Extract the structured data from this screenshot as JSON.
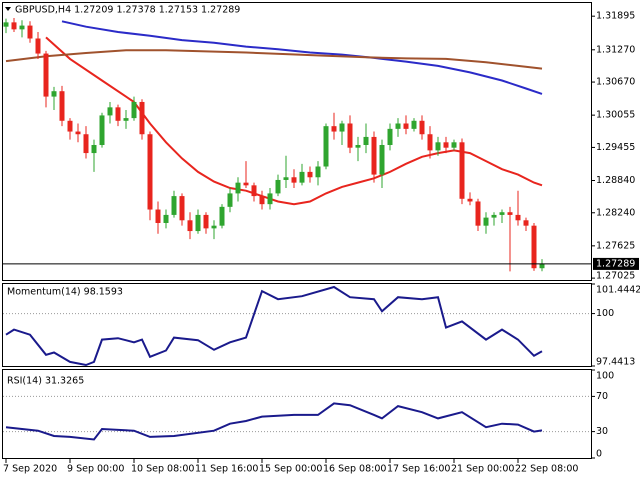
{
  "chart_data": [
    {
      "type": "candlestick",
      "title": "GBPUSD,H4  1.27209 1.27378 1.27153 1.27289",
      "categories": [
        "7 Sep 2020",
        null,
        null,
        null,
        null,
        null,
        null,
        null,
        "9 Sep 00:00",
        null,
        null,
        null,
        null,
        null,
        null,
        null,
        "10 Sep 08:00",
        null,
        null,
        null,
        null,
        null,
        null,
        null,
        "11 Sep 16:00",
        null,
        null,
        null,
        null,
        null,
        null,
        null,
        "15 Sep 00:00",
        null,
        null,
        null,
        null,
        null,
        null,
        null,
        "16 Sep 08:00",
        null,
        null,
        null,
        null,
        null,
        null,
        null,
        "17 Sep 16:00",
        null,
        null,
        null,
        null,
        null,
        null,
        null,
        "21 Sep 00:00",
        null,
        null,
        null,
        null,
        null,
        null,
        null,
        "22 Sep 08:00",
        null,
        null,
        null
      ],
      "open": [
        1.317,
        1.3178,
        1.3165,
        1.3172,
        1.3148,
        1.312,
        1.304,
        1.305,
        1.2995,
        1.2975,
        1.297,
        1.2935,
        1.295,
        1.3005,
        1.302,
        1.2995,
        1.3,
        1.303,
        1.297,
        1.283,
        1.2805,
        1.282,
        1.2855,
        1.281,
        1.279,
        1.282,
        1.2795,
        1.28,
        1.2835,
        1.286,
        1.288,
        1.2875,
        1.2855,
        1.284,
        1.286,
        1.2885,
        1.289,
        1.288,
        1.29,
        1.289,
        1.291,
        1.2985,
        1.2975,
        1.299,
        1.2945,
        1.295,
        1.2965,
        1.2895,
        1.295,
        1.298,
        1.299,
        1.298,
        1.2995,
        1.297,
        1.294,
        1.2955,
        1.2945,
        1.2955,
        1.285,
        1.2845,
        1.28,
        1.2815,
        1.282,
        1.2825,
        1.282,
        1.281,
        1.28,
        1.27209
      ],
      "high": [
        1.3185,
        1.3186,
        1.3182,
        1.318,
        1.316,
        1.3125,
        1.3058,
        1.306,
        1.3,
        1.299,
        1.2985,
        1.296,
        1.301,
        1.303,
        1.3025,
        1.3015,
        1.304,
        1.3035,
        1.2975,
        1.2845,
        1.283,
        1.2865,
        1.286,
        1.2825,
        1.283,
        1.2825,
        1.281,
        1.284,
        1.287,
        1.289,
        1.292,
        1.288,
        1.2865,
        1.287,
        1.2895,
        1.293,
        1.2905,
        1.2915,
        1.291,
        1.292,
        1.299,
        1.301,
        1.2995,
        1.3005,
        1.2965,
        1.299,
        1.2975,
        1.296,
        1.299,
        1.3,
        1.3005,
        1.3,
        1.3005,
        1.2985,
        1.2965,
        1.2965,
        1.296,
        1.2962,
        1.2862,
        1.285,
        1.2825,
        1.2825,
        1.283,
        1.2835,
        1.2865,
        1.2815,
        1.2805,
        1.27378
      ],
      "low": [
        1.3158,
        1.316,
        1.315,
        1.314,
        1.311,
        1.302,
        1.3015,
        1.2985,
        1.296,
        1.2955,
        1.2925,
        1.29,
        1.2945,
        1.299,
        1.2985,
        1.298,
        1.2995,
        1.296,
        1.281,
        1.2785,
        1.2795,
        1.2815,
        1.28,
        1.2775,
        1.2785,
        1.2785,
        1.2775,
        1.2795,
        1.2825,
        1.2845,
        1.287,
        1.2845,
        1.283,
        1.283,
        1.2855,
        1.287,
        1.287,
        1.2875,
        1.288,
        1.2875,
        1.2905,
        1.296,
        1.295,
        1.2935,
        1.292,
        1.2935,
        1.288,
        1.287,
        1.294,
        1.2965,
        1.297,
        1.2975,
        1.296,
        1.2925,
        1.293,
        1.2935,
        1.294,
        1.284,
        1.2838,
        1.279,
        1.2785,
        1.28,
        1.2805,
        1.2715,
        1.28,
        1.279,
        1.2716,
        1.27153
      ],
      "close": [
        1.3178,
        1.3165,
        1.3172,
        1.3148,
        1.312,
        1.304,
        1.305,
        1.2995,
        1.2975,
        1.297,
        1.2935,
        1.295,
        1.3005,
        1.302,
        1.2995,
        1.3,
        1.303,
        1.297,
        1.283,
        1.2805,
        1.282,
        1.2855,
        1.281,
        1.279,
        1.282,
        1.2795,
        1.28,
        1.2835,
        1.286,
        1.288,
        1.2875,
        1.2855,
        1.284,
        1.286,
        1.2885,
        1.289,
        1.288,
        1.29,
        1.289,
        1.291,
        1.2985,
        1.2975,
        1.299,
        1.2945,
        1.295,
        1.2965,
        1.2895,
        1.295,
        1.298,
        1.299,
        1.298,
        1.2995,
        1.297,
        1.294,
        1.2955,
        1.2945,
        1.2955,
        1.285,
        1.2845,
        1.28,
        1.2815,
        1.282,
        1.2825,
        1.282,
        1.281,
        1.28,
        1.27209,
        1.27289
      ],
      "up_color": "#2fa52f",
      "down_color": "#e8251e",
      "series": [
        {
          "color": "#e8251e",
          "x": [
            5,
            8,
            12,
            16,
            18,
            20,
            22,
            24,
            26,
            28,
            30,
            32,
            34,
            36,
            38,
            40,
            42,
            44,
            46,
            48,
            50,
            52,
            54,
            56,
            58,
            60,
            62,
            64,
            66,
            67
          ],
          "values": [
            1.315,
            1.311,
            1.307,
            1.303,
            1.299,
            1.2955,
            1.2925,
            1.29,
            1.2882,
            1.287,
            1.2865,
            1.2855,
            1.2845,
            1.284,
            1.2845,
            1.286,
            1.2872,
            1.288,
            1.2888,
            1.29,
            1.2915,
            1.2928,
            1.2935,
            1.294,
            1.2935,
            1.292,
            1.2905,
            1.2895,
            1.288,
            1.2875
          ]
        },
        {
          "color": "#2b2bc8",
          "x": [
            7,
            10,
            14,
            18,
            22,
            26,
            30,
            34,
            38,
            42,
            46,
            50,
            54,
            58,
            62,
            65,
            67
          ],
          "values": [
            1.318,
            1.317,
            1.316,
            1.3153,
            1.3145,
            1.314,
            1.3133,
            1.3128,
            1.3122,
            1.3118,
            1.3112,
            1.3105,
            1.3097,
            1.3085,
            1.307,
            1.3055,
            1.3045
          ]
        },
        {
          "color": "#a0522d",
          "x": [
            0,
            5,
            10,
            15,
            20,
            25,
            30,
            35,
            40,
            45,
            50,
            55,
            60,
            64,
            67
          ],
          "values": [
            1.3106,
            1.3115,
            1.3121,
            1.3126,
            1.3126,
            1.3124,
            1.3122,
            1.3119,
            1.3116,
            1.3113,
            1.3111,
            1.311,
            1.3104,
            1.3097,
            1.3092
          ]
        }
      ],
      "current_price": 1.27289,
      "ylim": [
        1.2699,
        1.3214
      ],
      "yticks": [
        1.31895,
        {
          "value": 1.3127,
          "label": "1.31270"
        },
        {
          "value": 1.3067,
          "label": "1.30670"
        },
        1.30055,
        1.29455,
        {
          "value": 1.2884,
          "label": "1.28840"
        },
        {
          "value": 1.2824,
          "label": "1.28240"
        },
        1.27625,
        1.27025
      ]
    },
    {
      "type": "line",
      "title": "Momentum(14) 98.1593",
      "color": "#1a1a8c",
      "x": [
        0,
        1,
        3,
        5,
        6,
        8,
        10,
        11,
        12,
        14,
        16,
        17,
        18,
        20,
        21,
        24,
        26,
        28,
        30,
        32,
        34,
        37,
        41,
        43,
        46,
        47,
        49,
        52,
        54,
        55,
        57,
        60,
        62,
        64,
        66,
        67
      ],
      "values": [
        98.97,
        99.22,
        98.97,
        97.99,
        98.1,
        97.64,
        97.49,
        97.64,
        98.73,
        98.8,
        98.6,
        98.73,
        97.89,
        98.2,
        98.83,
        98.7,
        98.23,
        98.6,
        98.83,
        101.1,
        100.7,
        100.85,
        101.3,
        100.8,
        100.7,
        100.11,
        100.8,
        100.7,
        100.8,
        99.32,
        99.62,
        98.73,
        99.22,
        98.73,
        97.94,
        98.1593
      ],
      "ylim": [
        97.4413,
        101.4442
      ],
      "yticks": [
        101.4442,
        100,
        97.4413
      ]
    },
    {
      "type": "line",
      "title": "RSI(14) 31.3265",
      "color": "#1a1a8c",
      "x": [
        0,
        4,
        6,
        8,
        11,
        12,
        16,
        18,
        21,
        26,
        28,
        30,
        32,
        36,
        39,
        41,
        43,
        46,
        47,
        49,
        52,
        54,
        57,
        60,
        62,
        64,
        66,
        67
      ],
      "values": [
        35,
        31,
        25,
        24,
        21,
        33,
        31,
        24,
        25,
        31,
        39,
        42,
        47,
        49,
        49,
        62,
        60,
        49,
        45,
        59,
        52,
        45,
        52,
        35,
        39,
        38,
        30,
        31.3265
      ],
      "ylim": [
        0,
        100
      ],
      "yticks": [
        100,
        70,
        30,
        0
      ]
    }
  ]
}
